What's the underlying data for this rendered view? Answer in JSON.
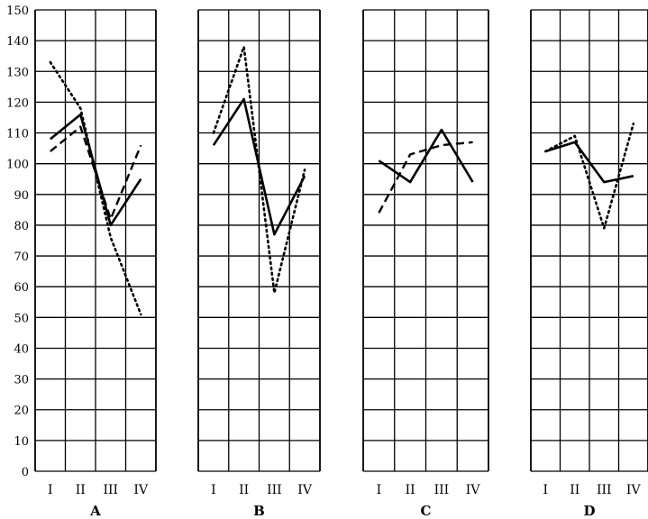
{
  "chart_data": {
    "type": "line",
    "title": "",
    "ylim": [
      0,
      150
    ],
    "y_ticks": [
      0,
      10,
      20,
      30,
      40,
      50,
      60,
      70,
      80,
      90,
      100,
      110,
      120,
      130,
      140,
      150
    ],
    "categories": [
      "I",
      "II",
      "III",
      "IV"
    ],
    "grid": true,
    "panels": [
      {
        "label": "A",
        "series": [
          {
            "style": "solid",
            "values": [
              108,
              116,
              80,
              95
            ]
          },
          {
            "style": "dashed",
            "values": [
              104,
              112,
              82,
              106
            ]
          },
          {
            "style": "dotted",
            "values": [
              133,
              118,
              76,
              51
            ]
          }
        ]
      },
      {
        "label": "B",
        "series": [
          {
            "style": "solid",
            "values": [
              106,
              121,
              77,
              96
            ]
          },
          {
            "style": "dotted",
            "values": [
              110,
              138,
              58,
              98
            ]
          }
        ]
      },
      {
        "label": "C",
        "series": [
          {
            "style": "solid",
            "values": [
              101,
              94,
              111,
              94
            ]
          },
          {
            "style": "dashed",
            "values": [
              84,
              103,
              106,
              107
            ]
          }
        ]
      },
      {
        "label": "D",
        "series": [
          {
            "style": "solid",
            "values": [
              104,
              107,
              94,
              96
            ]
          },
          {
            "style": "dotted",
            "values": [
              104,
              109,
              79,
              113
            ]
          }
        ]
      }
    ]
  }
}
